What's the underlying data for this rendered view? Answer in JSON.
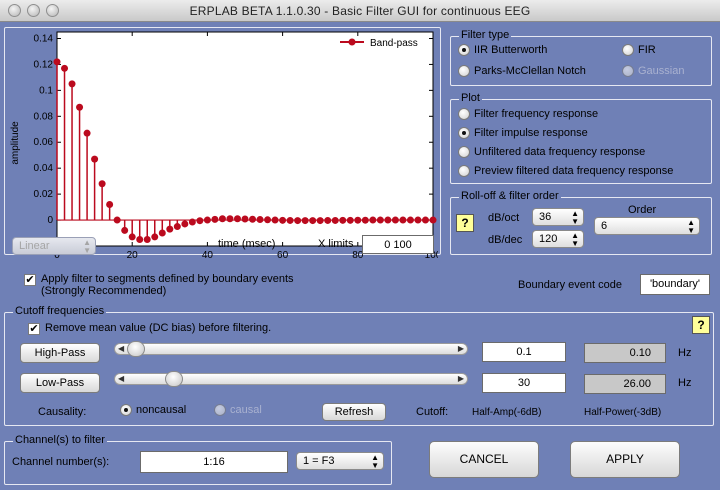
{
  "window": {
    "title": "ERPLAB BETA 1.1.0.30   -   Basic Filter GUI for continuous EEG"
  },
  "plot": {
    "ylabel": "amplitude",
    "xlabel": "time (msec)",
    "legend": "Band-pass",
    "xlimits_label": "X limits",
    "xlimits_value": "0  100",
    "scale_popup": "Linear"
  },
  "chart_data": {
    "type": "stem",
    "series": [
      {
        "name": "Band-pass",
        "color": "#bb0a1e"
      }
    ],
    "x": [
      0,
      2,
      4,
      6,
      8,
      10,
      12,
      14,
      16,
      18,
      20,
      22,
      24,
      26,
      28,
      30,
      32,
      34,
      36,
      38,
      40,
      42,
      44,
      46,
      48,
      50,
      52,
      54,
      56,
      58,
      60,
      62,
      64,
      66,
      68,
      70,
      72,
      74,
      76,
      78,
      80,
      82,
      84,
      86,
      88,
      90,
      92,
      94,
      96,
      98,
      100
    ],
    "y": [
      0.122,
      0.117,
      0.105,
      0.087,
      0.067,
      0.047,
      0.028,
      0.012,
      0.0,
      -0.008,
      -0.013,
      -0.015,
      -0.015,
      -0.013,
      -0.01,
      -0.007,
      -0.005,
      -0.003,
      -0.0015,
      -0.0005,
      0.0,
      0.0005,
      0.001,
      0.001,
      0.001,
      0.0008,
      0.0006,
      0.0004,
      0.0002,
      0.0,
      -0.0002,
      -0.0003,
      -0.0004,
      -0.0004,
      -0.0004,
      -0.0004,
      -0.0003,
      -0.0003,
      -0.0002,
      -0.0002,
      -0.0001,
      -0.0001,
      0.0,
      0.0,
      0.0,
      0.0,
      0.0,
      0.0,
      0.0,
      0.0,
      0.0
    ],
    "xlim": [
      0,
      100
    ],
    "ylim": [
      -0.02,
      0.145
    ],
    "xticks": [
      0,
      20,
      40,
      60,
      80,
      100
    ],
    "yticks": [
      0,
      0.02,
      0.04,
      0.06,
      0.08,
      0.1,
      0.12,
      0.14
    ],
    "ytick_labels": [
      "0",
      "0.02",
      "0.04",
      "0.06",
      "0.08",
      "0.1",
      "0.12",
      "0.14"
    ],
    "legend_position": "top-right",
    "grid": false
  },
  "filter_type": {
    "label": "Filter type",
    "iir": "IIR Butterworth",
    "fir": "FIR",
    "pm": "Parks-McClellan Notch",
    "gaussian": "Gaussian"
  },
  "plot_panel": {
    "label": "Plot",
    "opt1": "Filter frequency response",
    "opt2": "Filter impulse response",
    "opt3": "Unfiltered data frequency response",
    "opt4": "Preview filtered data frequency response"
  },
  "rolloff": {
    "label": "Roll-off & filter order",
    "dboct_label": "dB/oct",
    "dboct_value": "36",
    "dbdec_label": "dB/dec",
    "dbdec_value": "120",
    "order_label": "Order",
    "order_value": "6",
    "help": "?"
  },
  "boundary": {
    "apply_text": "Apply filter to segments defined by boundary events (Strongly Recommended)",
    "check_mark": "✔",
    "event_code_label": "Boundary event code",
    "event_code_value": "'boundary'"
  },
  "cutoff": {
    "label": "Cutoff frequencies",
    "remove_dc": "Remove mean value (DC bias) before filtering.",
    "check_mark": "✔",
    "help": "?",
    "highpass_btn": "High-Pass",
    "highpass_value": "0.1",
    "highpass_result": "0.10",
    "lowpass_btn": "Low-Pass",
    "lowpass_value": "30",
    "lowpass_result": "26.00",
    "hz": "Hz",
    "causality_label": "Causality:",
    "noncausal": "noncausal",
    "causal": "causal",
    "refresh": "Refresh",
    "cutoff_label": "Cutoff:",
    "half_amp": "Half-Amp(-6dB)",
    "half_power": "Half-Power(-3dB)"
  },
  "channels": {
    "label": "Channel(s) to filter",
    "number_label": "Channel number(s):",
    "value": "1:16",
    "popup": "1 = F3"
  },
  "actions": {
    "cancel": "CANCEL",
    "apply": "APPLY"
  }
}
